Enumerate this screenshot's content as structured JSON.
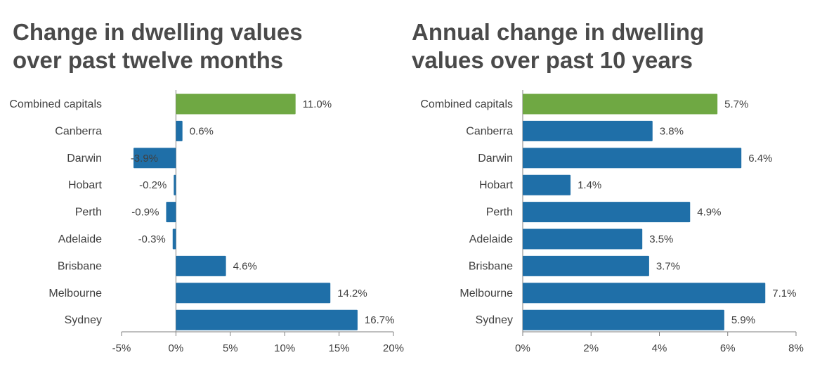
{
  "chart_data": [
    {
      "type": "bar",
      "orientation": "horizontal",
      "title_lines": [
        "Change in dwelling values",
        "over past twelve months"
      ],
      "categories": [
        "Combined capitals",
        "Canberra",
        "Darwin",
        "Hobart",
        "Perth",
        "Adelaide",
        "Brisbane",
        "Melbourne",
        "Sydney"
      ],
      "values": [
        11.0,
        0.6,
        -3.9,
        -0.2,
        -0.9,
        -0.3,
        4.6,
        14.2,
        16.7
      ],
      "data_labels": [
        "11.0%",
        "0.6%",
        "-3.9%",
        "-0.2%",
        "-0.9%",
        "-0.3%",
        "4.6%",
        "14.2%",
        "16.7%"
      ],
      "xlim": [
        -5,
        20
      ],
      "xticks": [
        -5,
        0,
        5,
        10,
        15,
        20
      ],
      "xtick_labels": [
        "-5%",
        "0%",
        "5%",
        "10%",
        "15%",
        "20%"
      ],
      "highlight_category": "Combined capitals",
      "colors": {
        "bar": "#1f6fa8",
        "highlight": "#6fa843",
        "axis": "#7f7f7f"
      },
      "grid": false
    },
    {
      "type": "bar",
      "orientation": "horizontal",
      "title_lines": [
        "Annual change in dwelling",
        "values over past 10 years"
      ],
      "categories": [
        "Combined capitals",
        "Canberra",
        "Darwin",
        "Hobart",
        "Perth",
        "Adelaide",
        "Brisbane",
        "Melbourne",
        "Sydney"
      ],
      "values": [
        5.7,
        3.8,
        6.4,
        1.4,
        4.9,
        3.5,
        3.7,
        7.1,
        5.9
      ],
      "data_labels": [
        "5.7%",
        "3.8%",
        "6.4%",
        "1.4%",
        "4.9%",
        "3.5%",
        "3.7%",
        "7.1%",
        "5.9%"
      ],
      "xlim": [
        0,
        8
      ],
      "xticks": [
        0,
        2,
        4,
        6,
        8
      ],
      "xtick_labels": [
        "0%",
        "2%",
        "4%",
        "6%",
        "8%"
      ],
      "highlight_category": "Combined capitals",
      "colors": {
        "bar": "#1f6fa8",
        "highlight": "#6fa843",
        "axis": "#7f7f7f"
      },
      "grid": false
    }
  ]
}
